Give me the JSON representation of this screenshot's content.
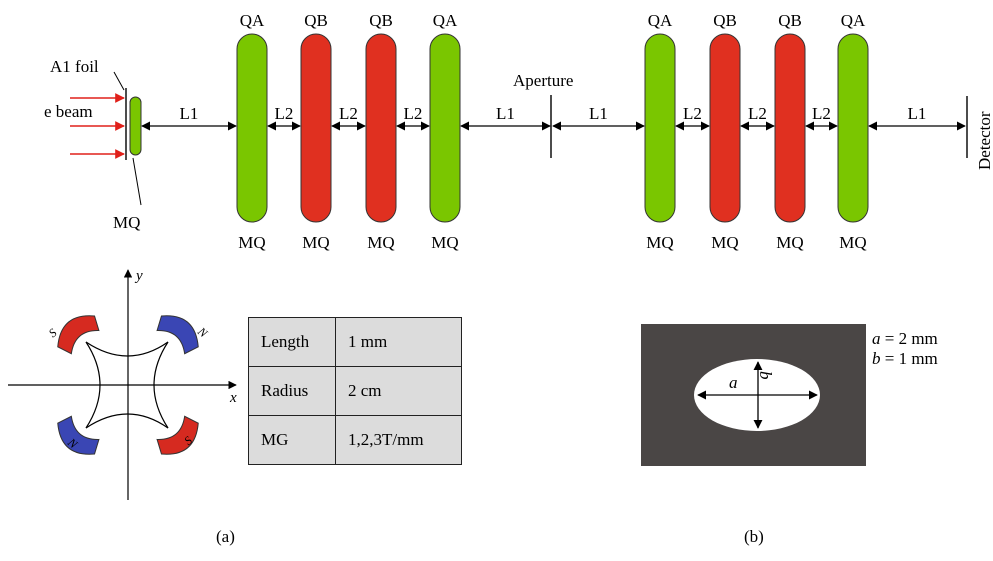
{
  "beamline": {
    "labels": {
      "foil": "A1 foil",
      "beam": "e beam",
      "mq_small": "MQ",
      "aperture": "Aperture",
      "detector": "Detector",
      "l1": "L1",
      "l2": "L2"
    },
    "top_labels": [
      "QA",
      "QB",
      "QB",
      "QA",
      "QA",
      "QB",
      "QB",
      "QA"
    ],
    "bottom_labels": [
      "MQ",
      "MQ",
      "MQ",
      "MQ",
      "MQ",
      "MQ",
      "MQ",
      "MQ"
    ],
    "quad_types": [
      "QA",
      "QB",
      "QB",
      "QA",
      "QA",
      "QB",
      "QB",
      "QA"
    ],
    "colors": {
      "QA": "#7ac600",
      "QB": "#e03020",
      "beam_arrow": "#e0201a"
    }
  },
  "quadrupole_diagram": {
    "axis_x": "x",
    "axis_y": "y",
    "poles": [
      "S",
      "N",
      "N",
      "S"
    ],
    "colors": {
      "red_pole": "#d62a20",
      "blue_pole": "#3a46b4"
    }
  },
  "parameter_table": {
    "rows": [
      {
        "key": "Length",
        "value": "1 mm"
      },
      {
        "key": "Radius",
        "value": "2 cm"
      },
      {
        "key": "MG",
        "value": "1,2,3T/mm"
      }
    ]
  },
  "aperture_shape": {
    "label_a": "a",
    "label_b": "b",
    "param_a_name": "a",
    "param_a_value": "= 2 mm",
    "param_b_name": "b",
    "param_b_value": "= 1 mm",
    "background": "#4a4645"
  },
  "captions": {
    "a": "(a)",
    "b": "(b)"
  }
}
